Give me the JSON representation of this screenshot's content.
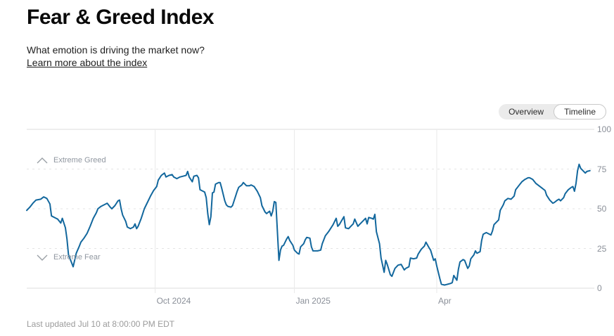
{
  "page": {
    "title": "Fear & Greed Index",
    "subtitle": "What emotion is driving the market now?",
    "learn_more_link": "Learn more about the index",
    "last_updated": "Last updated Jul 10 at 8:00:00 PM EDT"
  },
  "controls": {
    "view_toggle": {
      "options": [
        "Overview",
        "Timeline"
      ],
      "selected": "Timeline"
    }
  },
  "colors": {
    "line": "#12679d",
    "grid_solid": "#dedede",
    "grid_dashed": "#e4e4e4",
    "grid_vertical": "#e9e9e9",
    "axis_label": "#8a8f98",
    "threshold_label": "#9097a0"
  },
  "chart_data": {
    "type": "line",
    "title": "Fear & Greed Index timeline, Jul 2024 - Jul 10 2025",
    "grid": true,
    "legend": "none",
    "y_axis": {
      "min": 0,
      "max": 100,
      "ticks": [
        0,
        25,
        50,
        75,
        100
      ]
    },
    "x_axis": {
      "unit": "days since 2024-07-10",
      "range_days": [
        0,
        364
      ],
      "ticks": [
        {
          "label": "Oct 2024",
          "day": 83
        },
        {
          "label": "Jan 2025",
          "day": 173
        },
        {
          "label": "Apr",
          "day": 265
        }
      ]
    },
    "thresholds": [
      {
        "label": "Extreme Greed",
        "value": 75,
        "icon": "chevron-up-icon"
      },
      {
        "label": "Extreme Fear",
        "value": 25,
        "icon": "chevron-down-icon"
      }
    ],
    "series": [
      {
        "name": "Fear & Greed Index",
        "points": [
          [
            0,
            49
          ],
          [
            2,
            51
          ],
          [
            4,
            53.5
          ],
          [
            6,
            55.5
          ],
          [
            9,
            56
          ],
          [
            11,
            57.5
          ],
          [
            13,
            56.5
          ],
          [
            15,
            53
          ],
          [
            16,
            45.5
          ],
          [
            19,
            44
          ],
          [
            20,
            43.5
          ],
          [
            22,
            41
          ],
          [
            23,
            44
          ],
          [
            25,
            38
          ],
          [
            26,
            31
          ],
          [
            27,
            21
          ],
          [
            29,
            16
          ],
          [
            30,
            13.5
          ],
          [
            32,
            22
          ],
          [
            34,
            26.5
          ],
          [
            35,
            29
          ],
          [
            37,
            31.5
          ],
          [
            39,
            34.5
          ],
          [
            41,
            39
          ],
          [
            43,
            44
          ],
          [
            45,
            47.5
          ],
          [
            46,
            50
          ],
          [
            48,
            51.5
          ],
          [
            50,
            52.5
          ],
          [
            52,
            53.5
          ],
          [
            54,
            51
          ],
          [
            55,
            50
          ],
          [
            57,
            52
          ],
          [
            59,
            55
          ],
          [
            60,
            55.5
          ],
          [
            61,
            50
          ],
          [
            62,
            46
          ],
          [
            64,
            42
          ],
          [
            65,
            38.5
          ],
          [
            67,
            37.5
          ],
          [
            69,
            38.5
          ],
          [
            70,
            40.5
          ],
          [
            71,
            37.5
          ],
          [
            72,
            39
          ],
          [
            74,
            44
          ],
          [
            75,
            47
          ],
          [
            76,
            50
          ],
          [
            78,
            54
          ],
          [
            80,
            58
          ],
          [
            82,
            61.5
          ],
          [
            84,
            64
          ],
          [
            85,
            68
          ],
          [
            87,
            71
          ],
          [
            89,
            72.5
          ],
          [
            90,
            70
          ],
          [
            92,
            71
          ],
          [
            94,
            71.5
          ],
          [
            95,
            70
          ],
          [
            97,
            69
          ],
          [
            99,
            70
          ],
          [
            101,
            70.5
          ],
          [
            103,
            71
          ],
          [
            104,
            73.5
          ],
          [
            105,
            70
          ],
          [
            107,
            67
          ],
          [
            108,
            70.5
          ],
          [
            110,
            71
          ],
          [
            111,
            69.5
          ],
          [
            112,
            62
          ],
          [
            114,
            61
          ],
          [
            115,
            60.5
          ],
          [
            116,
            57
          ],
          [
            117,
            47
          ],
          [
            118,
            40
          ],
          [
            119,
            45
          ],
          [
            120,
            60
          ],
          [
            121,
            60.5
          ],
          [
            122,
            65.5
          ],
          [
            124,
            66.5
          ],
          [
            125,
            66.5
          ],
          [
            126,
            63
          ],
          [
            128,
            55
          ],
          [
            129,
            52.5
          ],
          [
            130,
            51.5
          ],
          [
            132,
            51
          ],
          [
            133,
            52
          ],
          [
            135,
            58
          ],
          [
            136,
            61
          ],
          [
            137,
            63.5
          ],
          [
            139,
            65
          ],
          [
            140,
            66.5
          ],
          [
            142,
            64.5
          ],
          [
            144,
            64.5
          ],
          [
            145,
            65
          ],
          [
            147,
            64
          ],
          [
            149,
            61
          ],
          [
            151,
            57
          ],
          [
            152,
            52
          ],
          [
            154,
            48
          ],
          [
            155,
            47
          ],
          [
            157,
            48.5
          ],
          [
            158,
            45.5
          ],
          [
            159,
            48.5
          ],
          [
            160,
            54.5
          ],
          [
            161,
            54
          ],
          [
            163,
            17.5
          ],
          [
            164,
            24
          ],
          [
            165,
            26.5
          ],
          [
            166,
            27
          ],
          [
            168,
            31
          ],
          [
            169,
            32.5
          ],
          [
            170,
            30
          ],
          [
            172,
            27
          ],
          [
            173,
            24
          ],
          [
            175,
            22
          ],
          [
            176,
            21.5
          ],
          [
            177,
            26
          ],
          [
            179,
            28
          ],
          [
            180,
            30.5
          ],
          [
            181,
            32
          ],
          [
            183,
            31.5
          ],
          [
            184,
            26
          ],
          [
            185,
            23.5
          ],
          [
            188,
            23.5
          ],
          [
            190,
            24
          ],
          [
            191,
            28
          ],
          [
            193,
            33
          ],
          [
            195,
            35.5
          ],
          [
            196,
            37
          ],
          [
            198,
            40
          ],
          [
            200,
            44
          ],
          [
            201,
            39
          ],
          [
            202,
            40
          ],
          [
            205,
            45
          ],
          [
            206,
            38
          ],
          [
            208,
            37.5
          ],
          [
            210,
            39.5
          ],
          [
            211,
            40.5
          ],
          [
            212,
            43.5
          ],
          [
            214,
            39
          ],
          [
            215,
            40
          ],
          [
            217,
            42
          ],
          [
            219,
            44
          ],
          [
            220,
            40.5
          ],
          [
            221,
            44.5
          ],
          [
            223,
            44
          ],
          [
            224,
            43.5
          ],
          [
            225,
            46.5
          ],
          [
            226,
            35.5
          ],
          [
            228,
            28
          ],
          [
            229,
            19
          ],
          [
            231,
            10
          ],
          [
            232,
            17.5
          ],
          [
            233,
            15
          ],
          [
            235,
            8.5
          ],
          [
            236,
            7.5
          ],
          [
            238,
            12.5
          ],
          [
            240,
            14.5
          ],
          [
            242,
            15
          ],
          [
            244,
            11.5
          ],
          [
            245,
            12.5
          ],
          [
            247,
            13.5
          ],
          [
            248,
            19
          ],
          [
            250,
            18.5
          ],
          [
            252,
            19
          ],
          [
            253,
            21.5
          ],
          [
            255,
            24.5
          ],
          [
            257,
            26.5
          ],
          [
            258,
            29
          ],
          [
            260,
            25.5
          ],
          [
            261,
            24
          ],
          [
            263,
            17.5
          ],
          [
            264,
            18.5
          ],
          [
            265,
            14
          ],
          [
            267,
            6
          ],
          [
            268,
            2.5
          ],
          [
            270,
            2
          ],
          [
            272,
            2.5
          ],
          [
            274,
            3
          ],
          [
            275,
            3.5
          ],
          [
            276,
            8
          ],
          [
            278,
            5
          ],
          [
            279,
            12
          ],
          [
            280,
            16.5
          ],
          [
            282,
            18
          ],
          [
            283,
            17.5
          ],
          [
            285,
            12.5
          ],
          [
            286,
            14
          ],
          [
            287,
            18.5
          ],
          [
            289,
            21
          ],
          [
            290,
            23.5
          ],
          [
            291,
            22
          ],
          [
            293,
            23
          ],
          [
            294,
            30
          ],
          [
            295,
            34
          ],
          [
            297,
            35
          ],
          [
            298,
            34.5
          ],
          [
            300,
            33.5
          ],
          [
            301,
            36
          ],
          [
            302,
            40
          ],
          [
            304,
            42
          ],
          [
            305,
            43
          ],
          [
            306,
            49
          ],
          [
            308,
            52.5
          ],
          [
            309,
            55
          ],
          [
            311,
            56.5
          ],
          [
            313,
            56
          ],
          [
            315,
            58
          ],
          [
            316,
            62
          ],
          [
            318,
            64.5
          ],
          [
            320,
            67
          ],
          [
            322,
            68.5
          ],
          [
            324,
            69.5
          ],
          [
            325,
            69.5
          ],
          [
            327,
            68.5
          ],
          [
            329,
            66
          ],
          [
            331,
            64.5
          ],
          [
            333,
            63
          ],
          [
            335,
            61.5
          ],
          [
            336,
            58.5
          ],
          [
            338,
            55.5
          ],
          [
            340,
            53.5
          ],
          [
            341,
            54
          ],
          [
            343,
            55.5
          ],
          [
            344,
            56
          ],
          [
            345,
            55
          ],
          [
            347,
            57
          ],
          [
            348,
            59.5
          ],
          [
            350,
            62
          ],
          [
            352,
            63.5
          ],
          [
            353,
            64
          ],
          [
            354,
            61
          ],
          [
            355,
            66
          ],
          [
            356,
            74
          ],
          [
            357,
            78
          ],
          [
            358,
            75.5
          ],
          [
            360,
            73.5
          ],
          [
            361,
            72.5
          ],
          [
            362,
            73.5
          ],
          [
            364,
            74
          ]
        ]
      }
    ]
  }
}
